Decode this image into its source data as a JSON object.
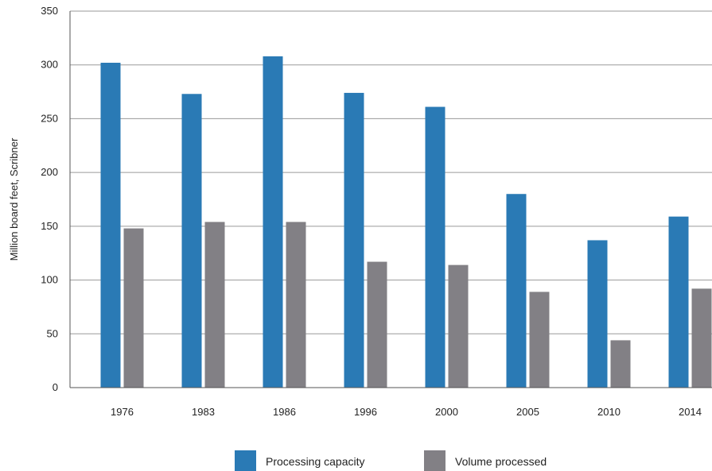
{
  "chart_data": {
    "type": "bar",
    "title": "",
    "xlabel": "",
    "ylabel": "Million board feet, Scribner",
    "ylim": [
      0,
      350
    ],
    "yticks": [
      0,
      50,
      100,
      150,
      200,
      250,
      300,
      350
    ],
    "grid": true,
    "legend_position": "bottom",
    "categories": [
      "1976",
      "1983",
      "1986",
      "1996",
      "2000",
      "2005",
      "2010",
      "2014"
    ],
    "series": [
      {
        "name": "Processing capacity",
        "color": "#2a7ab5",
        "values": [
          302,
          273,
          308,
          274,
          261,
          180,
          137,
          159
        ]
      },
      {
        "name": "Volume processed",
        "color": "#828085",
        "values": [
          148,
          154,
          154,
          117,
          114,
          89,
          44,
          92
        ]
      }
    ]
  }
}
